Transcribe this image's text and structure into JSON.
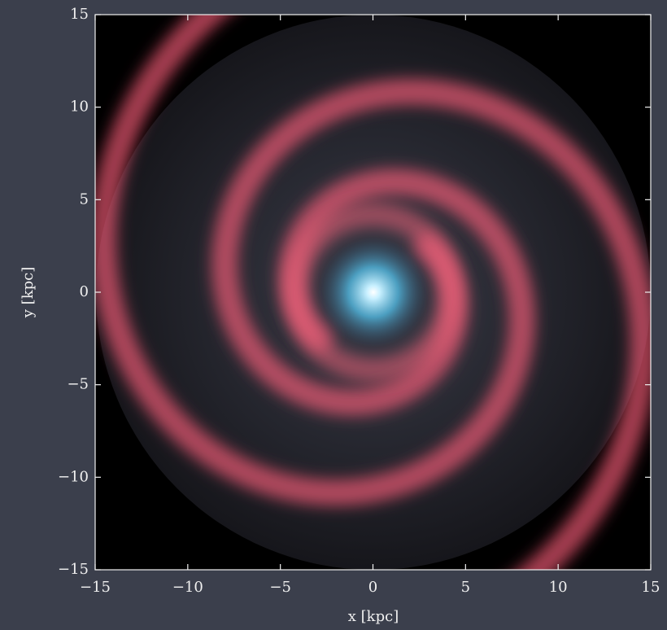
{
  "chart_data": {
    "type": "image",
    "xlabel": "x [kpc]",
    "ylabel": "y [kpc]",
    "xlim": [
      -15,
      15
    ],
    "ylim": [
      -15,
      15
    ],
    "xticks": [
      {
        "value": -15,
        "label": "−15"
      },
      {
        "value": -10,
        "label": "−10"
      },
      {
        "value": -5,
        "label": "−5"
      },
      0,
      5,
      10,
      15
    ],
    "yticks": [
      {
        "value": -15,
        "label": "−15"
      },
      {
        "value": -10,
        "label": "−10"
      },
      {
        "value": -5,
        "label": "−5"
      },
      0,
      5,
      10,
      15
    ]
  }
}
